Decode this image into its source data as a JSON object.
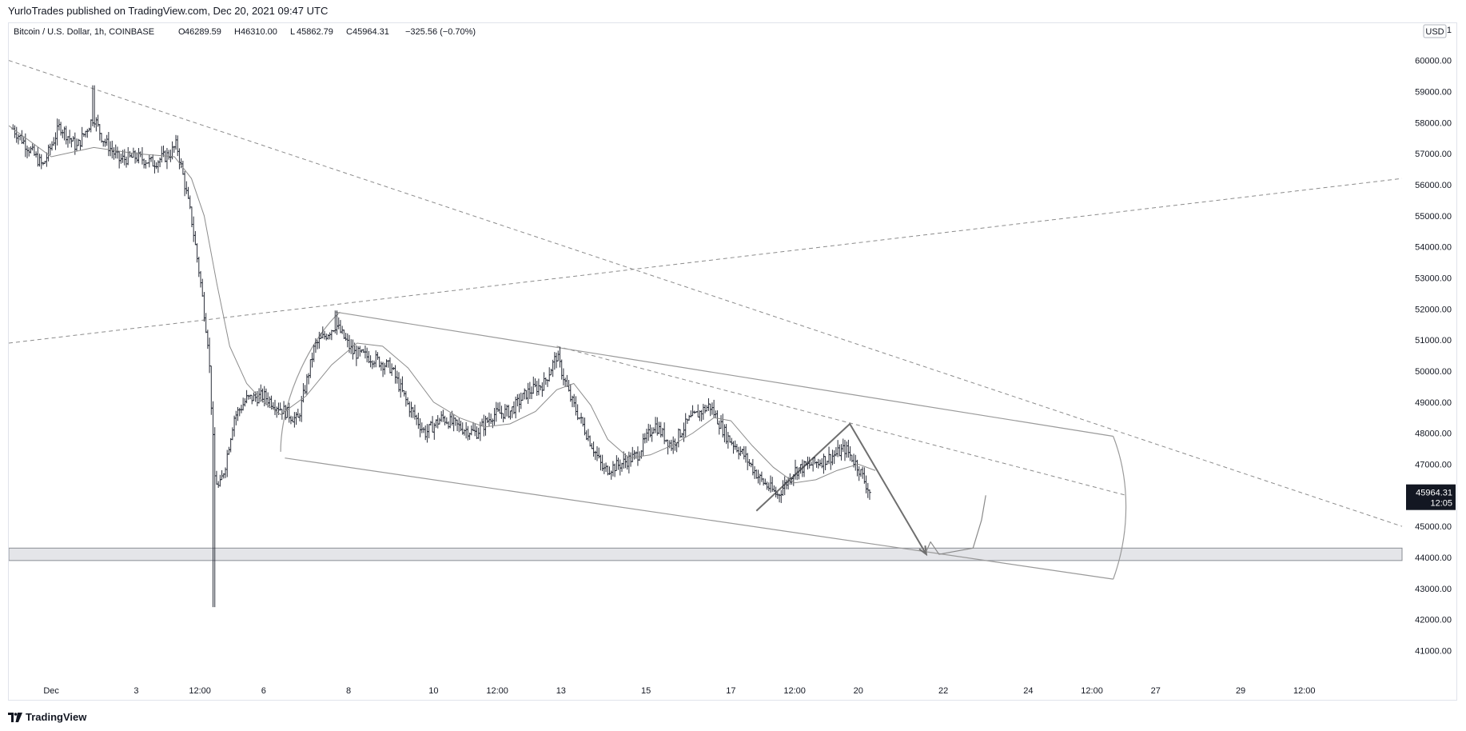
{
  "header": {
    "published": "YurloTrades published on TradingView.com, Dec 20, 2021 09:47 UTC"
  },
  "legend": {
    "symbol": "Bitcoin / U.S. Dollar, 1h, COINBASE",
    "open_label": "O",
    "open": "46289.59",
    "high_label": "H",
    "high": "46310.00",
    "low_label": "L",
    "low": "45862.79",
    "close_label": "C",
    "close": "45964.31",
    "change": "−325.56 (−0.70%)"
  },
  "currency_badge": "USD",
  "price_tag": {
    "price": "45964.31",
    "countdown": "12:05"
  },
  "footer": {
    "logo_text": "TradingView"
  },
  "chart_data": {
    "type": "candlestick",
    "ylim": [
      40600,
      61200
    ],
    "xlabel": "",
    "ylabel": "",
    "y_ticks": [
      "61",
      "60000.00",
      "59000.00",
      "58000.00",
      "57000.00",
      "56000.00",
      "55000.00",
      "54000.00",
      "53000.00",
      "52000.00",
      "51000.00",
      "50000.00",
      "49000.00",
      "48000.00",
      "47000.00",
      "46000.00",
      "45000.00",
      "44000.00",
      "43000.00",
      "42000.00",
      "41000.00"
    ],
    "y_tick_values": [
      61000,
      60000,
      59000,
      58000,
      57000,
      56000,
      55000,
      54000,
      53000,
      52000,
      51000,
      50000,
      49000,
      48000,
      47000,
      46000,
      45000,
      44000,
      43000,
      42000,
      41000
    ],
    "x_ticks": [
      {
        "label": "Dec",
        "day": 1.0
      },
      {
        "label": "3",
        "day": 3.0
      },
      {
        "label": "12:00",
        "day": 4.5
      },
      {
        "label": "6",
        "day": 6.0
      },
      {
        "label": "8",
        "day": 8.0
      },
      {
        "label": "10",
        "day": 10.0
      },
      {
        "label": "12:00",
        "day": 11.5
      },
      {
        "label": "13",
        "day": 13.0
      },
      {
        "label": "15",
        "day": 15.0
      },
      {
        "label": "17",
        "day": 17.0
      },
      {
        "label": "12:00",
        "day": 18.5
      },
      {
        "label": "20",
        "day": 20.0
      },
      {
        "label": "22",
        "day": 22.0
      },
      {
        "label": "24",
        "day": 24.0
      },
      {
        "label": "12:00",
        "day": 25.5
      },
      {
        "label": "27",
        "day": 27.0
      },
      {
        "label": "29",
        "day": 29.0
      },
      {
        "label": "12:00",
        "day": 30.5
      }
    ],
    "x_range_days": [
      0.0,
      32.8
    ],
    "price_path": [
      [
        0.1,
        57800
      ],
      [
        0.4,
        57300
      ],
      [
        0.8,
        56600
      ],
      [
        1.2,
        57900
      ],
      [
        1.6,
        57200
      ],
      [
        2.0,
        58200
      ],
      [
        2.2,
        57500
      ],
      [
        2.6,
        56800
      ],
      [
        3.0,
        56900
      ],
      [
        3.4,
        56700
      ],
      [
        3.8,
        57000
      ],
      [
        3.95,
        57300
      ],
      [
        4.1,
        56300
      ],
      [
        4.3,
        54900
      ],
      [
        4.5,
        53000
      ],
      [
        4.7,
        50800
      ],
      [
        4.85,
        46600
      ],
      [
        4.95,
        46200
      ],
      [
        5.1,
        47000
      ],
      [
        5.3,
        48500
      ],
      [
        5.6,
        49100
      ],
      [
        6.0,
        49200
      ],
      [
        6.4,
        48800
      ],
      [
        6.8,
        48400
      ],
      [
        7.2,
        50800
      ],
      [
        7.7,
        51500
      ],
      [
        8.1,
        50600
      ],
      [
        8.6,
        50400
      ],
      [
        9.0,
        50100
      ],
      [
        9.4,
        48900
      ],
      [
        9.8,
        48000
      ],
      [
        10.2,
        48500
      ],
      [
        10.6,
        48200
      ],
      [
        11.0,
        48000
      ],
      [
        11.4,
        48600
      ],
      [
        11.8,
        48700
      ],
      [
        12.2,
        49300
      ],
      [
        12.6,
        49600
      ],
      [
        12.9,
        50500
      ],
      [
        13.2,
        49200
      ],
      [
        13.6,
        48000
      ],
      [
        14.0,
        46800
      ],
      [
        14.4,
        47000
      ],
      [
        14.8,
        47300
      ],
      [
        15.2,
        48300
      ],
      [
        15.6,
        47600
      ],
      [
        16.0,
        48400
      ],
      [
        16.5,
        48900
      ],
      [
        16.9,
        47900
      ],
      [
        17.3,
        47300
      ],
      [
        17.7,
        46500
      ],
      [
        18.1,
        46000
      ],
      [
        18.5,
        46800
      ],
      [
        18.9,
        47000
      ],
      [
        19.3,
        47200
      ],
      [
        19.7,
        47500
      ],
      [
        20.0,
        46900
      ],
      [
        20.3,
        46000
      ]
    ],
    "moving_average": [
      [
        0.0,
        57900
      ],
      [
        1.0,
        56900
      ],
      [
        2.0,
        57200
      ],
      [
        3.0,
        57000
      ],
      [
        3.9,
        56900
      ],
      [
        4.3,
        56200
      ],
      [
        4.6,
        55000
      ],
      [
        4.9,
        52800
      ],
      [
        5.2,
        50800
      ],
      [
        5.6,
        49600
      ],
      [
        6.0,
        49000
      ],
      [
        6.4,
        48600
      ],
      [
        7.0,
        49200
      ],
      [
        7.6,
        50200
      ],
      [
        8.2,
        50900
      ],
      [
        8.8,
        50800
      ],
      [
        9.4,
        50100
      ],
      [
        10.0,
        49000
      ],
      [
        10.6,
        48500
      ],
      [
        11.2,
        48200
      ],
      [
        11.8,
        48300
      ],
      [
        12.4,
        48700
      ],
      [
        12.9,
        49400
      ],
      [
        13.3,
        49600
      ],
      [
        13.7,
        48900
      ],
      [
        14.1,
        47800
      ],
      [
        14.6,
        47200
      ],
      [
        15.1,
        47300
      ],
      [
        15.6,
        47600
      ],
      [
        16.1,
        48000
      ],
      [
        16.6,
        48500
      ],
      [
        17.0,
        48400
      ],
      [
        17.5,
        47600
      ],
      [
        18.0,
        46900
      ],
      [
        18.5,
        46400
      ],
      [
        19.0,
        46500
      ],
      [
        19.5,
        46800
      ],
      [
        20.0,
        47000
      ],
      [
        20.4,
        46800
      ]
    ],
    "drawings": {
      "dashed_lines": [
        {
          "from": [
            0.0,
            60000
          ],
          "to": [
            32.8,
            45000
          ]
        },
        {
          "from": [
            0.0,
            50900
          ],
          "to": [
            32.8,
            56200
          ]
        },
        {
          "from": [
            12.9,
            50800
          ],
          "to": [
            26.3,
            46000
          ]
        }
      ],
      "channel_upper": {
        "from": [
          7.7,
          51900
        ],
        "to": [
          26.0,
          47900
        ]
      },
      "channel_lower": {
        "from": [
          6.5,
          47200
        ],
        "to": [
          26.0,
          43300
        ]
      },
      "support_zone": [
        43900,
        44300
      ],
      "path_arrow": [
        [
          17.6,
          45500
        ],
        [
          19.8,
          48300
        ],
        [
          21.6,
          44100
        ]
      ],
      "projection_curve": [
        [
          21.6,
          44200
        ],
        [
          21.7,
          44500
        ],
        [
          21.9,
          44100
        ],
        [
          22.3,
          44200
        ],
        [
          22.7,
          44300
        ],
        [
          22.9,
          45200
        ],
        [
          23.0,
          46000
        ]
      ],
      "channel_arc": [
        [
          26.0,
          47900
        ],
        [
          26.4,
          46500
        ],
        [
          26.4,
          44800
        ],
        [
          26.0,
          43300
        ]
      ],
      "left_arc": [
        [
          6.4,
          47400
        ],
        [
          6.4,
          49200
        ],
        [
          7.2,
          51200
        ],
        [
          7.8,
          51900
        ]
      ]
    }
  }
}
